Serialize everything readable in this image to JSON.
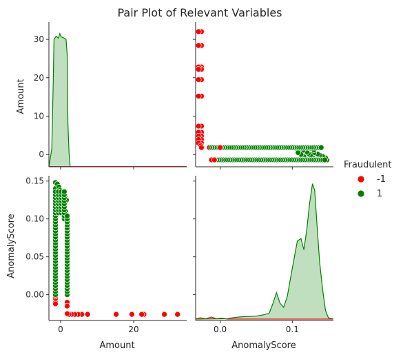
{
  "title": "Pair Plot of Relevant Variables",
  "colors": {
    "neg": "#ff0000",
    "pos": "#008000",
    "axis": "#262626"
  },
  "legend": {
    "title": "Fraudulent",
    "placement": "right",
    "entries": [
      {
        "label": "-1",
        "color": "#ff0000"
      },
      {
        "label": "1",
        "color": "#008000"
      }
    ]
  },
  "chart_data": {
    "type": "scatter",
    "title": "Pair Plot of Relevant Variables",
    "variables": [
      "Amount",
      "AnomalyScore"
    ],
    "hue": "Fraudulent",
    "ranges": {
      "Amount": [
        -3.2,
        34.5
      ],
      "AnomalyScore": [
        -0.034,
        0.157
      ]
    },
    "ticks": {
      "Amount_x": [
        0,
        20
      ],
      "Amount_y": [
        0,
        10,
        20,
        30
      ],
      "AnomalyScore_x": [
        0.0,
        0.1
      ],
      "AnomalyScore_y": [
        0.0,
        0.05,
        0.1,
        0.15
      ]
    },
    "tick_labels": {
      "Amount_x": [
        "0",
        "20"
      ],
      "Amount_y": [
        "0",
        "10",
        "20",
        "30"
      ],
      "AnomalyScore_x": [
        "0.0",
        "0.1"
      ],
      "AnomalyScore_y": [
        "0.00",
        "0.05",
        "0.10",
        "0.15"
      ]
    },
    "series": [
      {
        "name": "-1",
        "color": "#ff0000",
        "points": [
          {
            "Amount": 32.0,
            "AnomalyScore": -0.026
          },
          {
            "Amount": 28.4,
            "AnomalyScore": -0.026
          },
          {
            "Amount": 22.8,
            "AnomalyScore": -0.026
          },
          {
            "Amount": 22.2,
            "AnomalyScore": -0.026
          },
          {
            "Amount": 19.5,
            "AnomalyScore": -0.026
          },
          {
            "Amount": 15.2,
            "AnomalyScore": -0.026
          },
          {
            "Amount": 7.4,
            "AnomalyScore": -0.026
          },
          {
            "Amount": 5.8,
            "AnomalyScore": -0.026
          },
          {
            "Amount": 4.8,
            "AnomalyScore": -0.026
          },
          {
            "Amount": 3.9,
            "AnomalyScore": -0.026
          },
          {
            "Amount": 3.0,
            "AnomalyScore": -0.026
          },
          {
            "Amount": 2.3,
            "AnomalyScore": -0.026
          },
          {
            "Amount": 1.8,
            "AnomalyScore": -0.025
          },
          {
            "Amount": -1.4,
            "AnomalyScore": -0.008
          },
          {
            "Amount": -1.4,
            "AnomalyScore": -0.01
          },
          {
            "Amount": -1.4,
            "AnomalyScore": -0.012
          },
          {
            "Amount": -1.4,
            "AnomalyScore": -0.005
          },
          {
            "Amount": -1.4,
            "AnomalyScore": -0.002
          },
          {
            "Amount": -1.4,
            "AnomalyScore": 0.002
          },
          {
            "Amount": 1.8,
            "AnomalyScore": 0.0
          },
          {
            "Amount": 1.8,
            "AnomalyScore": -0.01
          },
          {
            "Amount": 1.8,
            "AnomalyScore": -0.015
          }
        ]
      },
      {
        "name": "1",
        "color": "#008000",
        "points": [
          {
            "Amount": -1.4,
            "AnomalyScore": 0.148
          },
          {
            "Amount": -1.4,
            "AnomalyScore": 0.14
          },
          {
            "Amount": -1.4,
            "AnomalyScore": 0.135
          },
          {
            "Amount": -1.4,
            "AnomalyScore": 0.128
          },
          {
            "Amount": -1.4,
            "AnomalyScore": 0.12
          },
          {
            "Amount": -1.4,
            "AnomalyScore": 0.11
          },
          {
            "Amount": -1.4,
            "AnomalyScore": 0.1
          },
          {
            "Amount": -1.4,
            "AnomalyScore": 0.09
          },
          {
            "Amount": -1.4,
            "AnomalyScore": 0.08
          },
          {
            "Amount": -1.4,
            "AnomalyScore": 0.07
          },
          {
            "Amount": -1.4,
            "AnomalyScore": 0.06
          },
          {
            "Amount": -1.4,
            "AnomalyScore": 0.05
          },
          {
            "Amount": -1.4,
            "AnomalyScore": 0.04
          },
          {
            "Amount": -1.4,
            "AnomalyScore": 0.03
          },
          {
            "Amount": -1.4,
            "AnomalyScore": 0.02
          },
          {
            "Amount": -1.4,
            "AnomalyScore": 0.01
          },
          {
            "Amount": -0.9,
            "AnomalyScore": 0.146
          },
          {
            "Amount": -0.5,
            "AnomalyScore": 0.142
          },
          {
            "Amount": -0.2,
            "AnomalyScore": 0.138
          },
          {
            "Amount": 0.1,
            "AnomalyScore": 0.135
          },
          {
            "Amount": 0.4,
            "AnomalyScore": 0.13
          },
          {
            "Amount": -0.8,
            "AnomalyScore": 0.128
          },
          {
            "Amount": -0.3,
            "AnomalyScore": 0.125
          },
          {
            "Amount": 0.3,
            "AnomalyScore": 0.122
          },
          {
            "Amount": 0.7,
            "AnomalyScore": 0.12
          },
          {
            "Amount": 1.1,
            "AnomalyScore": 0.115
          },
          {
            "Amount": 1.4,
            "AnomalyScore": 0.11
          },
          {
            "Amount": 1.6,
            "AnomalyScore": 0.105
          },
          {
            "Amount": 1.8,
            "AnomalyScore": 0.1
          },
          {
            "Amount": 1.8,
            "AnomalyScore": 0.09
          },
          {
            "Amount": 1.8,
            "AnomalyScore": 0.08
          },
          {
            "Amount": 1.8,
            "AnomalyScore": 0.07
          },
          {
            "Amount": 1.8,
            "AnomalyScore": 0.06
          },
          {
            "Amount": 1.8,
            "AnomalyScore": 0.05
          },
          {
            "Amount": 1.8,
            "AnomalyScore": 0.04
          },
          {
            "Amount": 1.8,
            "AnomalyScore": 0.03
          },
          {
            "Amount": 1.8,
            "AnomalyScore": 0.02
          },
          {
            "Amount": 1.8,
            "AnomalyScore": 0.01
          },
          {
            "Amount": -0.6,
            "AnomalyScore": 0.116
          },
          {
            "Amount": 0.0,
            "AnomalyScore": 0.112
          },
          {
            "Amount": 0.5,
            "AnomalyScore": 0.108
          },
          {
            "Amount": 1.6,
            "AnomalyScore": 0.125
          },
          {
            "Amount": 1.2,
            "AnomalyScore": 0.13
          }
        ]
      }
    ],
    "kde": {
      "Amount": {
        "-1": [
          [
            -3.2,
            0.0
          ],
          [
            34.5,
            0.0
          ]
        ],
        "1": [
          [
            -3.2,
            0.0
          ],
          [
            -2.4,
            1.5
          ],
          [
            -2.0,
            20.0
          ],
          [
            -1.8,
            30.0
          ],
          [
            -1.2,
            30.8
          ],
          [
            -0.6,
            30.3
          ],
          [
            -0.2,
            31.5
          ],
          [
            0.2,
            30.6
          ],
          [
            0.8,
            30.4
          ],
          [
            1.5,
            30.0
          ],
          [
            1.8,
            26.0
          ],
          [
            2.0,
            8.0
          ],
          [
            2.3,
            0.5
          ],
          [
            2.6,
            0.0
          ]
        ]
      },
      "AnomalyScore": {
        "-1": [
          [
            -0.034,
            0.0
          ],
          [
            -0.028,
            0.2
          ],
          [
            -0.02,
            0.05
          ],
          [
            -0.012,
            0.3
          ],
          [
            -0.005,
            0.05
          ],
          [
            0.002,
            0.15
          ],
          [
            0.01,
            0.0
          ],
          [
            0.157,
            0.0
          ]
        ],
        "1": [
          [
            -0.034,
            0.0
          ],
          [
            0.01,
            0.05
          ],
          [
            0.02,
            0.25
          ],
          [
            0.03,
            0.35
          ],
          [
            0.04,
            0.4
          ],
          [
            0.05,
            0.45
          ],
          [
            0.06,
            0.65
          ],
          [
            0.068,
            0.9
          ],
          [
            0.073,
            2.3
          ],
          [
            0.078,
            4.0
          ],
          [
            0.083,
            2.4
          ],
          [
            0.088,
            1.8
          ],
          [
            0.093,
            3.4
          ],
          [
            0.098,
            6.5
          ],
          [
            0.103,
            9.5
          ],
          [
            0.107,
            11.8
          ],
          [
            0.112,
            12.2
          ],
          [
            0.116,
            10.5
          ],
          [
            0.12,
            13.5
          ],
          [
            0.124,
            17.5
          ],
          [
            0.128,
            20.5
          ],
          [
            0.131,
            19.5
          ],
          [
            0.135,
            13.0
          ],
          [
            0.138,
            8.5
          ],
          [
            0.142,
            4.5
          ],
          [
            0.146,
            1.3
          ],
          [
            0.15,
            0.2
          ],
          [
            0.157,
            0.0
          ]
        ]
      }
    },
    "xlabels": [
      "Amount",
      "AnomalyScore"
    ],
    "ylabels": [
      "Amount",
      "AnomalyScore"
    ]
  }
}
